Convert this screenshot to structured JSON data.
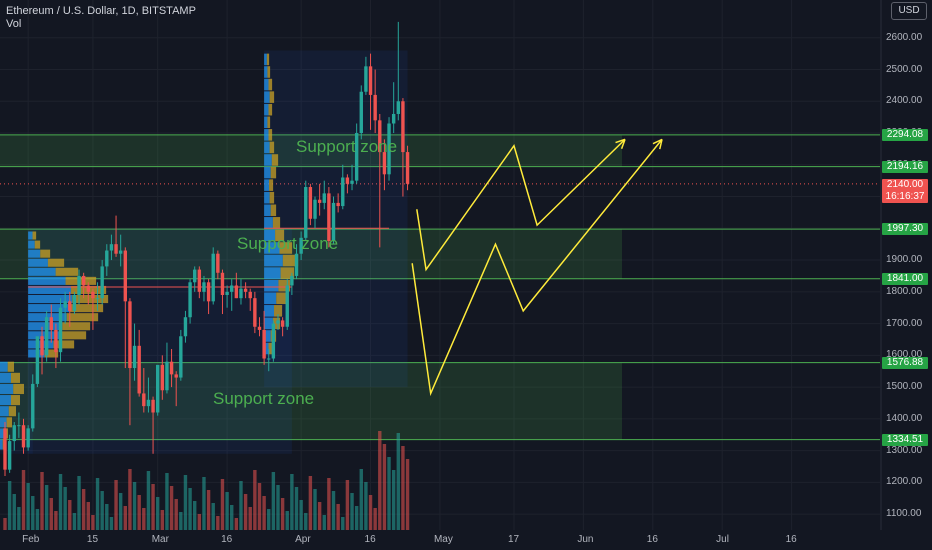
{
  "header": {
    "symbol_line": "Ethereum / U.S. Dollar, 1D, BITSTAMP",
    "volume_label": "Vol",
    "currency": "USD"
  },
  "price_axis": [
    "2600.00",
    "2500.00",
    "2400.00",
    "2300.00",
    "2200.00",
    "2100.00",
    "2000.00",
    "1900.00",
    "1800.00",
    "1700.00",
    "1600.00",
    "1500.00",
    "1400.00",
    "1300.00",
    "1200.00",
    "1100.00"
  ],
  "time_axis": [
    "Feb",
    "15",
    "Mar",
    "16",
    "Apr",
    "16",
    "May",
    "17",
    "Jun",
    "16",
    "Jul",
    "16"
  ],
  "levels": [
    "2294.08",
    "2194.16",
    "1997.30",
    "1841.00",
    "1576.88",
    "1334.51"
  ],
  "current": {
    "price": "2140.00",
    "countdown": "16:16:37"
  },
  "zones": [
    "Support zone",
    "Support zone",
    "Support zone"
  ],
  "colors": {
    "background": "#131722",
    "up": "#26a69a",
    "down": "#ef5350",
    "zone": "#4caf50",
    "arrows": "#ffeb3b",
    "profile_up": "#2196f3",
    "profile_down": "#c9a227"
  },
  "chart_data": {
    "type": "candlestick",
    "title": "Ethereum / U.S. Dollar, 1D, BITSTAMP",
    "ylim": [
      1050,
      2700
    ],
    "y_scale": "linear",
    "x_range": [
      "2021-01-27",
      "2021-07-28"
    ],
    "horizontal_levels": [
      2294.08,
      2194.16,
      1997.3,
      1841.0,
      1576.88,
      1334.51
    ],
    "support_zones": [
      {
        "label": "Support zone",
        "from": 2194.16,
        "to": 2294.08
      },
      {
        "label": "Support zone",
        "from": 1841.0,
        "to": 1997.3
      },
      {
        "label": "Support zone",
        "from": 1334.51,
        "to": 1576.88
      }
    ],
    "projection_paths": [
      {
        "points": [
          [
            "2021-04-26",
            2060
          ],
          [
            "2021-04-28",
            1870
          ],
          [
            "2021-05-17",
            2260
          ],
          [
            "2021-05-22",
            2010
          ],
          [
            "2021-06-10",
            2280
          ]
        ]
      },
      {
        "points": [
          [
            "2021-04-25",
            1890
          ],
          [
            "2021-04-29",
            1480
          ],
          [
            "2021-05-13",
            1950
          ],
          [
            "2021-05-19",
            1740
          ],
          [
            "2021-06-18",
            2280
          ]
        ]
      }
    ],
    "candles": [
      {
        "d": "2021-01-27",
        "o": 1370,
        "h": 1390,
        "l": 1220,
        "c": 1240
      },
      {
        "d": "2021-01-28",
        "o": 1240,
        "h": 1350,
        "l": 1230,
        "c": 1330
      },
      {
        "d": "2021-01-29",
        "o": 1330,
        "h": 1390,
        "l": 1300,
        "c": 1380
      },
      {
        "d": "2021-01-30",
        "o": 1380,
        "h": 1420,
        "l": 1340,
        "c": 1380
      },
      {
        "d": "2021-01-31",
        "o": 1380,
        "h": 1400,
        "l": 1290,
        "c": 1310
      },
      {
        "d": "2021-02-01",
        "o": 1310,
        "h": 1380,
        "l": 1300,
        "c": 1370
      },
      {
        "d": "2021-02-02",
        "o": 1370,
        "h": 1540,
        "l": 1360,
        "c": 1510
      },
      {
        "d": "2021-02-03",
        "o": 1510,
        "h": 1650,
        "l": 1500,
        "c": 1660
      },
      {
        "d": "2021-02-04",
        "o": 1660,
        "h": 1690,
        "l": 1540,
        "c": 1600
      },
      {
        "d": "2021-02-05",
        "o": 1600,
        "h": 1740,
        "l": 1580,
        "c": 1720
      },
      {
        "d": "2021-02-06",
        "o": 1720,
        "h": 1760,
        "l": 1640,
        "c": 1680
      },
      {
        "d": "2021-02-07",
        "o": 1680,
        "h": 1700,
        "l": 1560,
        "c": 1610
      },
      {
        "d": "2021-02-08",
        "o": 1610,
        "h": 1780,
        "l": 1580,
        "c": 1750
      },
      {
        "d": "2021-02-09",
        "o": 1750,
        "h": 1800,
        "l": 1700,
        "c": 1770
      },
      {
        "d": "2021-02-10",
        "o": 1770,
        "h": 1800,
        "l": 1690,
        "c": 1740
      },
      {
        "d": "2021-02-11",
        "o": 1740,
        "h": 1800,
        "l": 1730,
        "c": 1790
      },
      {
        "d": "2021-02-12",
        "o": 1790,
        "h": 1870,
        "l": 1760,
        "c": 1850
      },
      {
        "d": "2021-02-13",
        "o": 1850,
        "h": 1860,
        "l": 1780,
        "c": 1820
      },
      {
        "d": "2021-02-14",
        "o": 1820,
        "h": 1830,
        "l": 1760,
        "c": 1800
      },
      {
        "d": "2021-02-15",
        "o": 1800,
        "h": 1810,
        "l": 1680,
        "c": 1780
      },
      {
        "d": "2021-02-16",
        "o": 1780,
        "h": 1830,
        "l": 1740,
        "c": 1780
      },
      {
        "d": "2021-02-17",
        "o": 1780,
        "h": 1900,
        "l": 1760,
        "c": 1880
      },
      {
        "d": "2021-02-18",
        "o": 1880,
        "h": 1950,
        "l": 1850,
        "c": 1930
      },
      {
        "d": "2021-02-19",
        "o": 1930,
        "h": 1980,
        "l": 1900,
        "c": 1950
      },
      {
        "d": "2021-02-20",
        "o": 1950,
        "h": 2040,
        "l": 1910,
        "c": 1920
      },
      {
        "d": "2021-02-21",
        "o": 1920,
        "h": 1980,
        "l": 1880,
        "c": 1930
      },
      {
        "d": "2021-02-22",
        "o": 1930,
        "h": 1940,
        "l": 1560,
        "c": 1770
      },
      {
        "d": "2021-02-23",
        "o": 1770,
        "h": 1780,
        "l": 1380,
        "c": 1560
      },
      {
        "d": "2021-02-24",
        "o": 1560,
        "h": 1700,
        "l": 1520,
        "c": 1630
      },
      {
        "d": "2021-02-25",
        "o": 1630,
        "h": 1680,
        "l": 1470,
        "c": 1480
      },
      {
        "d": "2021-02-26",
        "o": 1480,
        "h": 1560,
        "l": 1420,
        "c": 1440
      },
      {
        "d": "2021-02-27",
        "o": 1440,
        "h": 1530,
        "l": 1420,
        "c": 1460
      },
      {
        "d": "2021-02-28",
        "o": 1460,
        "h": 1470,
        "l": 1290,
        "c": 1420
      },
      {
        "d": "2021-03-01",
        "o": 1420,
        "h": 1560,
        "l": 1410,
        "c": 1570
      },
      {
        "d": "2021-03-02",
        "o": 1570,
        "h": 1600,
        "l": 1460,
        "c": 1490
      },
      {
        "d": "2021-03-03",
        "o": 1490,
        "h": 1640,
        "l": 1480,
        "c": 1580
      },
      {
        "d": "2021-03-04",
        "o": 1580,
        "h": 1620,
        "l": 1500,
        "c": 1540
      },
      {
        "d": "2021-03-05",
        "o": 1540,
        "h": 1550,
        "l": 1440,
        "c": 1530
      },
      {
        "d": "2021-03-06",
        "o": 1530,
        "h": 1680,
        "l": 1520,
        "c": 1660
      },
      {
        "d": "2021-03-07",
        "o": 1660,
        "h": 1740,
        "l": 1640,
        "c": 1720
      },
      {
        "d": "2021-03-08",
        "o": 1720,
        "h": 1840,
        "l": 1700,
        "c": 1830
      },
      {
        "d": "2021-03-09",
        "o": 1830,
        "h": 1880,
        "l": 1800,
        "c": 1870
      },
      {
        "d": "2021-03-10",
        "o": 1870,
        "h": 1880,
        "l": 1780,
        "c": 1800
      },
      {
        "d": "2021-03-11",
        "o": 1800,
        "h": 1850,
        "l": 1770,
        "c": 1830
      },
      {
        "d": "2021-03-12",
        "o": 1830,
        "h": 1840,
        "l": 1730,
        "c": 1770
      },
      {
        "d": "2021-03-13",
        "o": 1770,
        "h": 1940,
        "l": 1760,
        "c": 1920
      },
      {
        "d": "2021-03-14",
        "o": 1920,
        "h": 1930,
        "l": 1840,
        "c": 1860
      },
      {
        "d": "2021-03-15",
        "o": 1860,
        "h": 1870,
        "l": 1730,
        "c": 1790
      },
      {
        "d": "2021-03-16",
        "o": 1790,
        "h": 1820,
        "l": 1750,
        "c": 1800
      },
      {
        "d": "2021-03-17",
        "o": 1800,
        "h": 1840,
        "l": 1740,
        "c": 1820
      },
      {
        "d": "2021-03-18",
        "o": 1820,
        "h": 1860,
        "l": 1780,
        "c": 1780
      },
      {
        "d": "2021-03-19",
        "o": 1780,
        "h": 1840,
        "l": 1760,
        "c": 1810
      },
      {
        "d": "2021-03-20",
        "o": 1810,
        "h": 1830,
        "l": 1780,
        "c": 1800
      },
      {
        "d": "2021-03-21",
        "o": 1800,
        "h": 1810,
        "l": 1740,
        "c": 1780
      },
      {
        "d": "2021-03-22",
        "o": 1780,
        "h": 1800,
        "l": 1670,
        "c": 1690
      },
      {
        "d": "2021-03-23",
        "o": 1690,
        "h": 1720,
        "l": 1660,
        "c": 1680
      },
      {
        "d": "2021-03-24",
        "o": 1680,
        "h": 1740,
        "l": 1570,
        "c": 1590
      },
      {
        "d": "2021-03-25",
        "o": 1590,
        "h": 1620,
        "l": 1550,
        "c": 1590
      },
      {
        "d": "2021-03-26",
        "o": 1590,
        "h": 1710,
        "l": 1580,
        "c": 1700
      },
      {
        "d": "2021-03-27",
        "o": 1700,
        "h": 1730,
        "l": 1680,
        "c": 1710
      },
      {
        "d": "2021-03-28",
        "o": 1710,
        "h": 1720,
        "l": 1660,
        "c": 1690
      },
      {
        "d": "2021-03-29",
        "o": 1690,
        "h": 1840,
        "l": 1680,
        "c": 1820
      },
      {
        "d": "2021-03-30",
        "o": 1820,
        "h": 1860,
        "l": 1790,
        "c": 1850
      },
      {
        "d": "2021-03-31",
        "o": 1850,
        "h": 1950,
        "l": 1840,
        "c": 1920
      },
      {
        "d": "2021-04-01",
        "o": 1920,
        "h": 1990,
        "l": 1900,
        "c": 1970
      },
      {
        "d": "2021-04-02",
        "o": 1970,
        "h": 2150,
        "l": 1960,
        "c": 2130
      },
      {
        "d": "2021-04-03",
        "o": 2130,
        "h": 2140,
        "l": 2010,
        "c": 2030
      },
      {
        "d": "2021-04-04",
        "o": 2030,
        "h": 2100,
        "l": 2000,
        "c": 2090
      },
      {
        "d": "2021-04-05",
        "o": 2090,
        "h": 2140,
        "l": 2040,
        "c": 2080
      },
      {
        "d": "2021-04-06",
        "o": 2080,
        "h": 2150,
        "l": 2060,
        "c": 2110
      },
      {
        "d": "2021-04-07",
        "o": 2110,
        "h": 2130,
        "l": 1940,
        "c": 1960
      },
      {
        "d": "2021-04-08",
        "o": 1960,
        "h": 2100,
        "l": 1950,
        "c": 2080
      },
      {
        "d": "2021-04-09",
        "o": 2080,
        "h": 2110,
        "l": 2050,
        "c": 2070
      },
      {
        "d": "2021-04-10",
        "o": 2070,
        "h": 2200,
        "l": 2060,
        "c": 2160
      },
      {
        "d": "2021-04-11",
        "o": 2160,
        "h": 2170,
        "l": 2110,
        "c": 2140
      },
      {
        "d": "2021-04-12",
        "o": 2140,
        "h": 2200,
        "l": 2120,
        "c": 2150
      },
      {
        "d": "2021-04-13",
        "o": 2150,
        "h": 2330,
        "l": 2140,
        "c": 2300
      },
      {
        "d": "2021-04-14",
        "o": 2300,
        "h": 2450,
        "l": 2280,
        "c": 2430
      },
      {
        "d": "2021-04-15",
        "o": 2430,
        "h": 2540,
        "l": 2420,
        "c": 2510
      },
      {
        "d": "2021-04-16",
        "o": 2510,
        "h": 2550,
        "l": 2310,
        "c": 2420
      },
      {
        "d": "2021-04-17",
        "o": 2420,
        "h": 2500,
        "l": 2300,
        "c": 2340
      },
      {
        "d": "2021-04-18",
        "o": 2340,
        "h": 2360,
        "l": 1940,
        "c": 2240
      },
      {
        "d": "2021-04-19",
        "o": 2240,
        "h": 2280,
        "l": 2120,
        "c": 2170
      },
      {
        "d": "2021-04-20",
        "o": 2170,
        "h": 2350,
        "l": 2150,
        "c": 2330
      },
      {
        "d": "2021-04-21",
        "o": 2330,
        "h": 2460,
        "l": 2300,
        "c": 2360
      },
      {
        "d": "2021-04-22",
        "o": 2360,
        "h": 2650,
        "l": 2340,
        "c": 2400
      },
      {
        "d": "2021-04-23",
        "o": 2400,
        "h": 2410,
        "l": 2100,
        "c": 2240
      },
      {
        "d": "2021-04-24",
        "o": 2240,
        "h": 2260,
        "l": 2120,
        "c": 2140
      }
    ]
  }
}
